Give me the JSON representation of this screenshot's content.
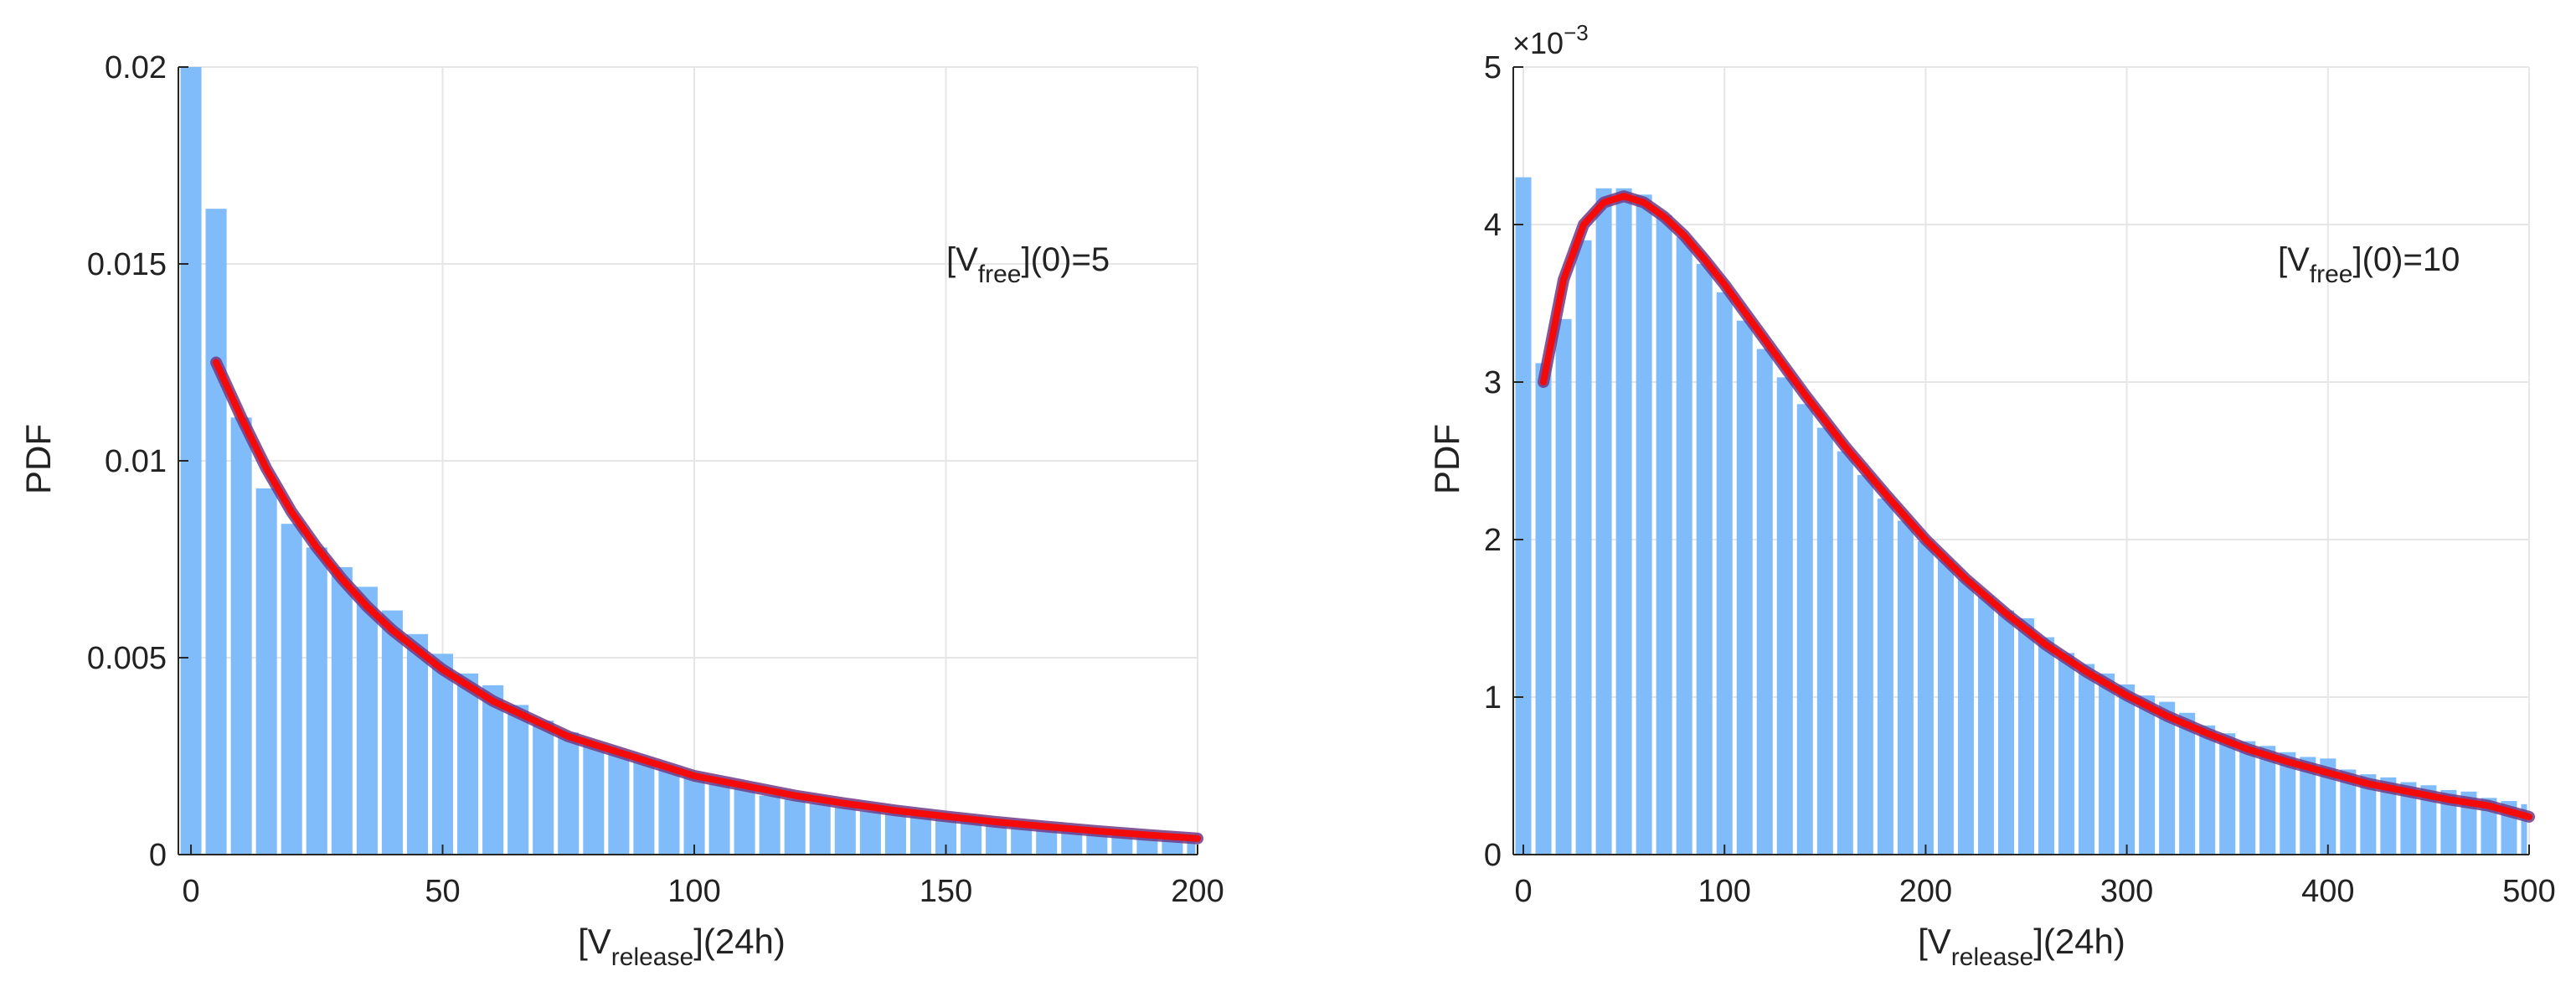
{
  "chart_data": [
    {
      "type": "bar",
      "title": "",
      "xlabel": {
        "main": "[V",
        "sub": "release",
        "rest": "](24h)"
      },
      "ylabel": "PDF",
      "xlim": [
        -2.5,
        200
      ],
      "ylim": [
        0,
        0.02
      ],
      "xticks": [
        0,
        50,
        100,
        150,
        200
      ],
      "xtick_labels": [
        "0",
        "50",
        "100",
        "150",
        "200"
      ],
      "yticks": [
        0,
        0.005,
        0.01,
        0.015,
        0.02
      ],
      "ytick_labels": [
        "0",
        "0.005",
        "0.01",
        "0.015",
        "0.02"
      ],
      "grid": true,
      "annotation": {
        "main": "[V",
        "sub": "free",
        "rest": "](0)=5",
        "x": 150,
        "y": 0.0148
      },
      "bin_width": 5,
      "bin_centers": [
        0,
        5,
        10,
        15,
        20,
        25,
        30,
        35,
        40,
        45,
        50,
        55,
        60,
        65,
        70,
        75,
        80,
        85,
        90,
        95,
        100,
        105,
        110,
        115,
        120,
        125,
        130,
        135,
        140,
        145,
        150,
        155,
        160,
        165,
        170,
        175,
        180,
        185,
        190,
        195,
        200
      ],
      "values": [
        0.02,
        0.0164,
        0.0111,
        0.0093,
        0.0084,
        0.0078,
        0.0073,
        0.0068,
        0.0062,
        0.0056,
        0.0051,
        0.0046,
        0.0043,
        0.0038,
        0.0034,
        0.0031,
        0.0028,
        0.0026,
        0.0024,
        0.0022,
        0.002,
        0.0018,
        0.0017,
        0.0015,
        0.0014,
        0.0013,
        0.0012,
        0.0011,
        0.00105,
        0.00098,
        0.0009,
        0.00085,
        0.0008,
        0.00074,
        0.00069,
        0.00063,
        0.00058,
        0.00053,
        0.00049,
        0.00045,
        0.00042
      ],
      "fit": {
        "name": "fit",
        "x": [
          5,
          10,
          15,
          20,
          25,
          30,
          35,
          40,
          45,
          50,
          55,
          60,
          65,
          70,
          75,
          80,
          85,
          90,
          95,
          100,
          110,
          120,
          130,
          140,
          150,
          160,
          170,
          180,
          190,
          200
        ],
        "y": [
          0.0125,
          0.0111,
          0.0098,
          0.0087,
          0.0078,
          0.007,
          0.0063,
          0.0057,
          0.0052,
          0.0047,
          0.0043,
          0.0039,
          0.0036,
          0.0033,
          0.003,
          0.0028,
          0.0026,
          0.0024,
          0.0022,
          0.002,
          0.00175,
          0.0015,
          0.0013,
          0.00112,
          0.00097,
          0.00083,
          0.00071,
          0.0006,
          0.0005,
          0.00041
        ]
      }
    },
    {
      "type": "bar",
      "title": "",
      "xlabel": {
        "main": "[V",
        "sub": "release",
        "rest": "](24h)"
      },
      "ylabel": "PDF",
      "xlim": [
        -5,
        500
      ],
      "ylim": [
        0,
        0.005
      ],
      "xticks": [
        0,
        100,
        200,
        300,
        400,
        500
      ],
      "xtick_labels": [
        "0",
        "100",
        "200",
        "300",
        "400",
        "500"
      ],
      "yticks": [
        0,
        0.001,
        0.002,
        0.003,
        0.004,
        0.005
      ],
      "ytick_labels": [
        "0",
        "1",
        "2",
        "3",
        "4",
        "5"
      ],
      "y_exponent": {
        "base": "×10",
        "exp": "−3"
      },
      "grid": true,
      "annotation": {
        "main": "[V",
        "sub": "free",
        "rest": "](0)=10",
        "x": 375,
        "y": 0.00375
      },
      "bin_width": 10,
      "bin_centers": [
        0,
        10,
        20,
        30,
        40,
        50,
        60,
        70,
        80,
        90,
        100,
        110,
        120,
        130,
        140,
        150,
        160,
        170,
        180,
        190,
        200,
        210,
        220,
        230,
        240,
        250,
        260,
        270,
        280,
        290,
        300,
        310,
        320,
        330,
        340,
        350,
        360,
        370,
        380,
        390,
        400,
        410,
        420,
        430,
        440,
        450,
        460,
        470,
        480,
        490,
        500
      ],
      "values": [
        0.0043,
        0.00312,
        0.0034,
        0.0039,
        0.00423,
        0.00423,
        0.00419,
        0.00406,
        0.00392,
        0.00375,
        0.00357,
        0.00339,
        0.00321,
        0.00303,
        0.00286,
        0.00271,
        0.00256,
        0.00241,
        0.00226,
        0.00212,
        0.00199,
        0.00187,
        0.00175,
        0.00164,
        0.00155,
        0.0015,
        0.00138,
        0.00128,
        0.00121,
        0.00115,
        0.00108,
        0.00101,
        0.00097,
        0.0009,
        0.00082,
        0.00077,
        0.00072,
        0.00069,
        0.00065,
        0.00062,
        0.00061,
        0.00054,
        0.00051,
        0.00049,
        0.00046,
        0.00044,
        0.00041,
        0.0004,
        0.00036,
        0.00034,
        0.00032
      ],
      "fit": {
        "name": "fit",
        "x": [
          10,
          20,
          30,
          40,
          50,
          60,
          70,
          80,
          90,
          100,
          120,
          140,
          160,
          180,
          200,
          220,
          240,
          260,
          280,
          300,
          320,
          340,
          360,
          380,
          400,
          420,
          440,
          460,
          480,
          500
        ],
        "y": [
          0.003,
          0.00365,
          0.004,
          0.00414,
          0.00418,
          0.00414,
          0.00405,
          0.00393,
          0.00378,
          0.00362,
          0.00327,
          0.00292,
          0.00259,
          0.00229,
          0.002,
          0.00175,
          0.00153,
          0.00133,
          0.00116,
          0.00101,
          0.00088,
          0.00077,
          0.00067,
          0.00059,
          0.00052,
          0.00045,
          0.0004,
          0.00035,
          0.00031,
          0.00024
        ]
      }
    }
  ],
  "style": {
    "bar_color": "#80BCF9",
    "fit_color": "#F50A0A",
    "fit_shadow_color": "#6E3A86",
    "grid_color": "#E6E6E6",
    "axis_color": "#262626"
  }
}
